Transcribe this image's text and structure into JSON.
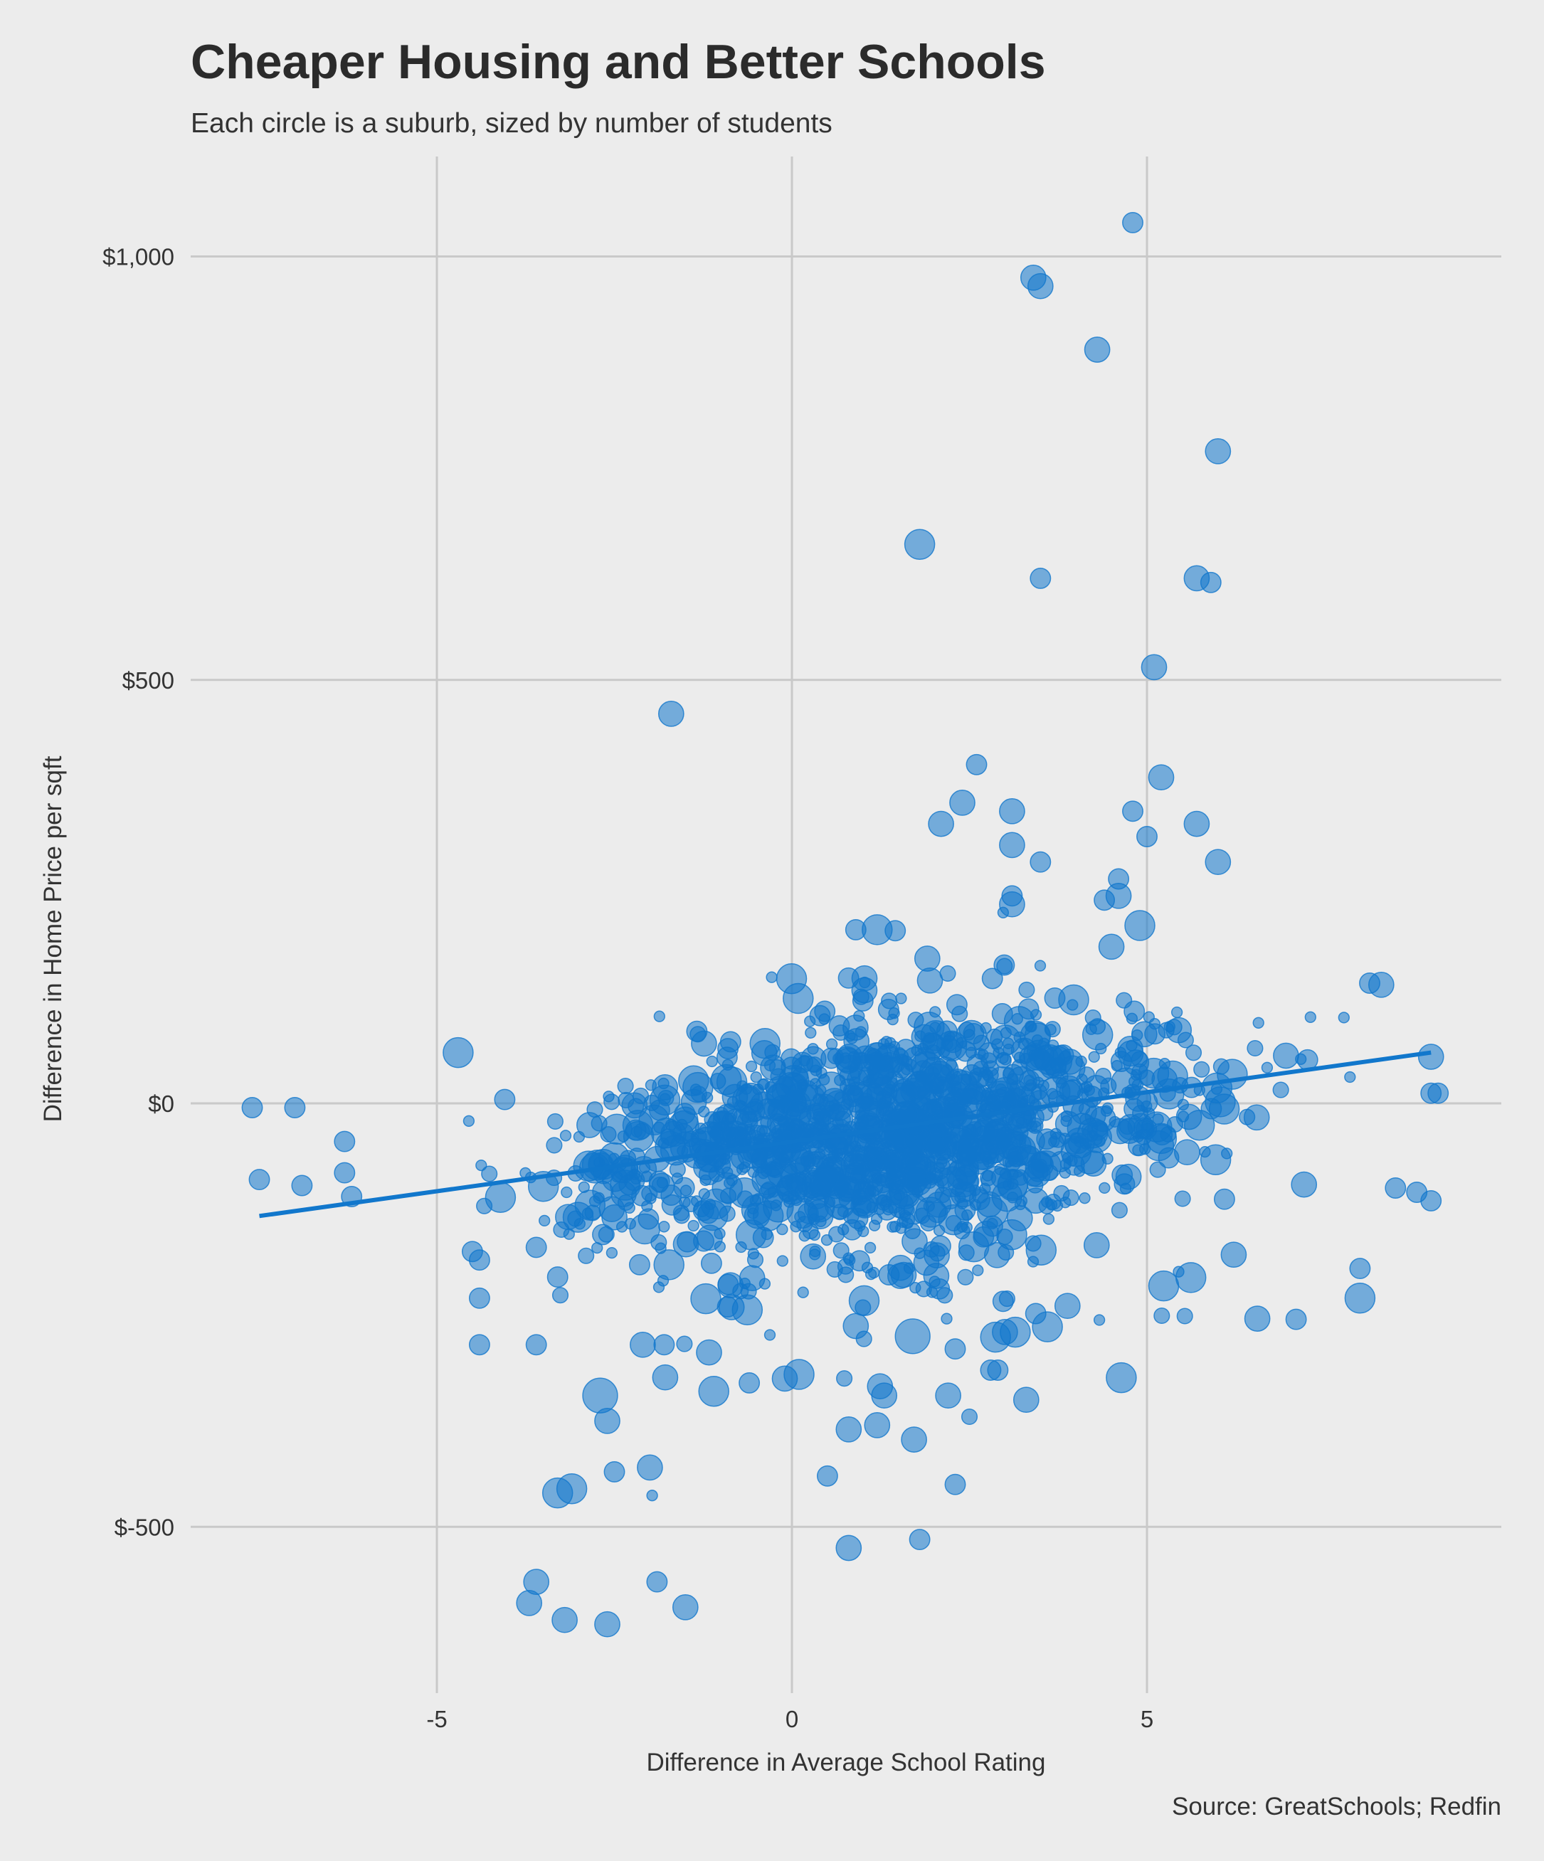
{
  "chart_data": {
    "type": "scatter",
    "title": "Cheaper Housing and Better Schools",
    "subtitle": "Each circle is a suburb, sized by number of students",
    "xlabel": "Difference in Average School Rating",
    "ylabel": "Difference in Home Price per sqft",
    "caption": "Source: GreatSchools; Redfin",
    "xlim": [
      -7.7,
      10.0
    ],
    "ylim": [
      -700,
      1100
    ],
    "x_ticks": [
      -5,
      0,
      5
    ],
    "x_tick_labels": [
      "-5",
      "0",
      "5"
    ],
    "y_ticks": [
      -500,
      0,
      500,
      1000
    ],
    "y_tick_labels": [
      "$-500",
      "$0",
      "$500",
      "$1,000"
    ],
    "grid": true,
    "point_color": "#1177cc",
    "trend_line": {
      "x": [
        -7.5,
        9.0
      ],
      "y": [
        -133,
        60
      ]
    },
    "outlier_points": [
      {
        "x": 4.8,
        "y": 1040,
        "s": 3
      },
      {
        "x": 3.4,
        "y": 975,
        "s": 4
      },
      {
        "x": 3.5,
        "y": 965,
        "s": 4
      },
      {
        "x": 4.3,
        "y": 890,
        "s": 4
      },
      {
        "x": 6.0,
        "y": 770,
        "s": 4
      },
      {
        "x": 1.8,
        "y": 660,
        "s": 5
      },
      {
        "x": 3.5,
        "y": 620,
        "s": 3
      },
      {
        "x": 5.7,
        "y": 620,
        "s": 4
      },
      {
        "x": 5.9,
        "y": 615,
        "s": 3
      },
      {
        "x": 5.1,
        "y": 515,
        "s": 4
      },
      {
        "x": -1.7,
        "y": 460,
        "s": 4
      },
      {
        "x": 2.6,
        "y": 400,
        "s": 3
      },
      {
        "x": 5.2,
        "y": 385,
        "s": 4
      },
      {
        "x": 2.4,
        "y": 355,
        "s": 4
      },
      {
        "x": 3.1,
        "y": 345,
        "s": 4
      },
      {
        "x": 4.8,
        "y": 345,
        "s": 3
      },
      {
        "x": 2.1,
        "y": 330,
        "s": 4
      },
      {
        "x": 5.7,
        "y": 330,
        "s": 4
      },
      {
        "x": 5.0,
        "y": 315,
        "s": 3
      },
      {
        "x": 3.1,
        "y": 305,
        "s": 4
      },
      {
        "x": 3.5,
        "y": 285,
        "s": 3
      },
      {
        "x": 6.0,
        "y": 285,
        "s": 4
      },
      {
        "x": 4.6,
        "y": 265,
        "s": 3
      },
      {
        "x": 3.1,
        "y": 245,
        "s": 3
      },
      {
        "x": 4.6,
        "y": 245,
        "s": 4
      },
      {
        "x": 4.4,
        "y": 240,
        "s": 3
      },
      {
        "x": 3.1,
        "y": 235,
        "s": 4
      },
      {
        "x": 4.9,
        "y": 210,
        "s": 5
      },
      {
        "x": 1.2,
        "y": 205,
        "s": 5
      },
      {
        "x": 0.9,
        "y": 205,
        "s": 3
      },
      {
        "x": 4.5,
        "y": 185,
        "s": 4
      },
      {
        "x": -4.7,
        "y": 60,
        "s": 5
      },
      {
        "x": -7.6,
        "y": -5,
        "s": 3
      },
      {
        "x": -7.0,
        "y": -5,
        "s": 3
      },
      {
        "x": 9.0,
        "y": 12,
        "s": 3
      },
      {
        "x": 9.1,
        "y": 12,
        "s": 3
      },
      {
        "x": 9.0,
        "y": 55,
        "s": 4
      },
      {
        "x": 8.3,
        "y": 140,
        "s": 4
      },
      {
        "x": -7.5,
        "y": -90,
        "s": 3
      },
      {
        "x": -6.9,
        "y": -97,
        "s": 3
      },
      {
        "x": -6.3,
        "y": -45,
        "s": 3
      },
      {
        "x": -6.3,
        "y": -82,
        "s": 3
      },
      {
        "x": -6.2,
        "y": -110,
        "s": 3
      },
      {
        "x": 8.8,
        "y": -105,
        "s": 3
      },
      {
        "x": 9.0,
        "y": -115,
        "s": 3
      },
      {
        "x": 8.5,
        "y": -100,
        "s": 3
      },
      {
        "x": 8.0,
        "y": -230,
        "s": 5
      },
      {
        "x": 8.0,
        "y": -195,
        "s": 3
      },
      {
        "x": 7.1,
        "y": -255,
        "s": 3
      },
      {
        "x": -4.5,
        "y": -175,
        "s": 3
      },
      {
        "x": -4.4,
        "y": -185,
        "s": 3
      },
      {
        "x": -4.4,
        "y": -230,
        "s": 3
      },
      {
        "x": -4.4,
        "y": -285,
        "s": 3
      },
      {
        "x": -3.6,
        "y": -285,
        "s": 3
      },
      {
        "x": -3.6,
        "y": -170,
        "s": 3
      },
      {
        "x": -3.3,
        "y": -205,
        "s": 3
      },
      {
        "x": -2.7,
        "y": -345,
        "s": 6
      },
      {
        "x": -2.6,
        "y": -375,
        "s": 4
      },
      {
        "x": -2.5,
        "y": -435,
        "s": 3
      },
      {
        "x": -3.3,
        "y": -460,
        "s": 5
      },
      {
        "x": -3.1,
        "y": -455,
        "s": 5
      },
      {
        "x": -2.0,
        "y": -430,
        "s": 4
      },
      {
        "x": -3.6,
        "y": -565,
        "s": 4
      },
      {
        "x": -3.7,
        "y": -590,
        "s": 4
      },
      {
        "x": -3.2,
        "y": -610,
        "s": 4
      },
      {
        "x": -2.6,
        "y": -615,
        "s": 4
      },
      {
        "x": -1.9,
        "y": -565,
        "s": 3
      },
      {
        "x": -1.5,
        "y": -595,
        "s": 4
      },
      {
        "x": -1.1,
        "y": -340,
        "s": 5
      },
      {
        "x": -0.6,
        "y": -330,
        "s": 3
      },
      {
        "x": -0.1,
        "y": -325,
        "s": 4
      },
      {
        "x": 0.1,
        "y": -320,
        "s": 5
      },
      {
        "x": 0.5,
        "y": -440,
        "s": 3
      },
      {
        "x": 0.8,
        "y": -385,
        "s": 4
      },
      {
        "x": 1.2,
        "y": -380,
        "s": 4
      },
      {
        "x": 1.3,
        "y": -345,
        "s": 4
      },
      {
        "x": 0.8,
        "y": -525,
        "s": 4
      },
      {
        "x": 1.8,
        "y": -515,
        "s": 3
      },
      {
        "x": 2.3,
        "y": -450,
        "s": 3
      },
      {
        "x": 2.2,
        "y": -345,
        "s": 4
      },
      {
        "x": 2.5,
        "y": -370,
        "s": 2
      },
      {
        "x": 3.3,
        "y": -350,
        "s": 4
      },
      {
        "x": 2.8,
        "y": -315,
        "s": 3
      },
      {
        "x": 2.9,
        "y": -315,
        "s": 3
      },
      {
        "x": 1.7,
        "y": -275,
        "s": 6
      },
      {
        "x": 2.3,
        "y": -290,
        "s": 3
      },
      {
        "x": 3.0,
        "y": -270,
        "s": 4
      },
      {
        "x": -1.8,
        "y": -285,
        "s": 3
      },
      {
        "x": -2.1,
        "y": -285,
        "s": 4
      }
    ]
  }
}
